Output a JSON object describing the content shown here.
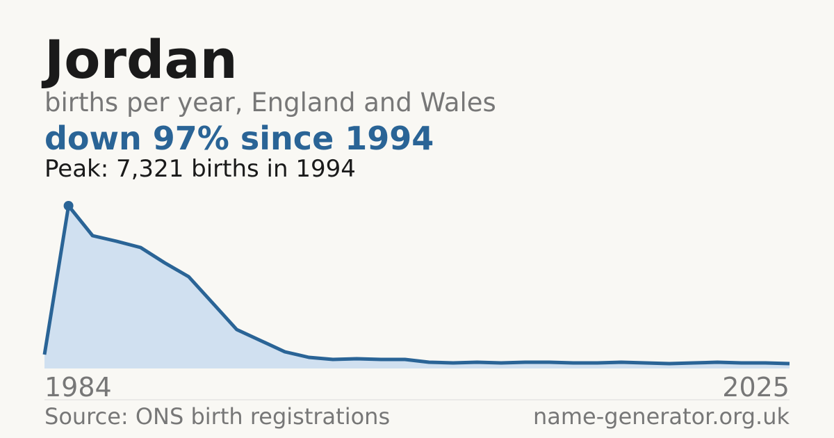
{
  "chart_data": {
    "type": "area",
    "title": "Jordan",
    "subtitle": "births per year, England and Wales",
    "headline": "down 97% since 1994",
    "peak_note": "Peak: 7,321 births in 1994",
    "source": "Source: ONS birth registrations",
    "site": "name-generator.org.uk",
    "categories": [
      "1984",
      null,
      null,
      null,
      null,
      null,
      null,
      null,
      null,
      null,
      null,
      null,
      null,
      null,
      null,
      null,
      null,
      null,
      null,
      null,
      null,
      null,
      null,
      null,
      null,
      null,
      null,
      null,
      null,
      null,
      null,
      "2025"
    ],
    "values": [
      626,
      7321,
      5976,
      5726,
      5445,
      4756,
      4130,
      2941,
      1752,
      1252,
      751,
      501,
      407,
      438,
      407,
      407,
      282,
      250,
      282,
      250,
      282,
      282,
      250,
      250,
      282,
      250,
      219,
      250,
      282,
      250,
      250,
      220
    ],
    "color": "#2a6496",
    "fill": "#d0e0f0",
    "ylim": [
      0,
      7321
    ]
  }
}
